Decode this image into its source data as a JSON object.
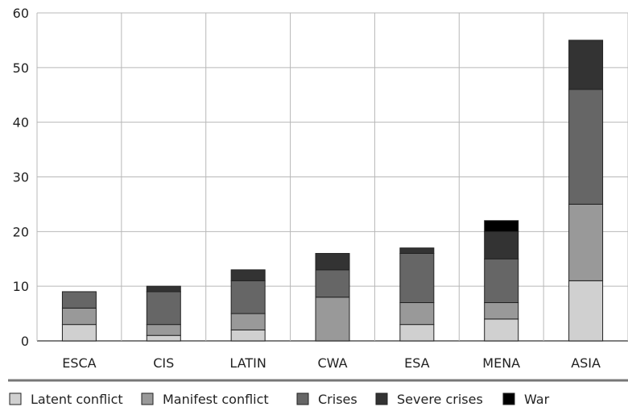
{
  "chart_data": {
    "type": "bar",
    "stacked": true,
    "categories": [
      "ESCA",
      "CIS",
      "LATIN",
      "CWA",
      "ESA",
      "MENA",
      "ASIA"
    ],
    "series": [
      {
        "name": "Latent conflict",
        "values": [
          3,
          1,
          2,
          0,
          3,
          4,
          11
        ],
        "color": "#d0d0d0"
      },
      {
        "name": "Manifest conflict",
        "values": [
          3,
          2,
          3,
          8,
          4,
          3,
          14
        ],
        "color": "#999999"
      },
      {
        "name": "Crises",
        "values": [
          3,
          6,
          6,
          5,
          9,
          8,
          21
        ],
        "color": "#666666"
      },
      {
        "name": "Severe crises",
        "values": [
          0,
          1,
          2,
          3,
          1,
          5,
          9
        ],
        "color": "#333333"
      },
      {
        "name": "War",
        "values": [
          0,
          0,
          0,
          0,
          0,
          2,
          0
        ],
        "color": "#000000"
      }
    ],
    "yticks": [
      0,
      10,
      20,
      30,
      40,
      50,
      60
    ],
    "ylim": [
      0,
      60
    ],
    "grid": true,
    "legend_position": "bottom"
  }
}
